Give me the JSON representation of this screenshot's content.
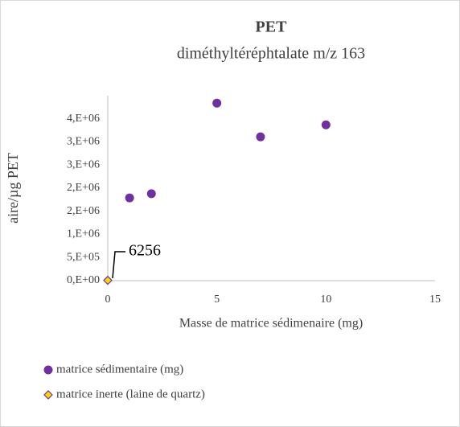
{
  "chart_data": {
    "type": "scatter",
    "title": "PET",
    "subtitle": "diméthyltéréphtalate m/z 163",
    "xlabel": "Masse de matrice sédimenaire (mg)",
    "ylabel": "aire/µg PET",
    "xlim": [
      0,
      15
    ],
    "xticks": [
      0,
      5,
      10,
      15
    ],
    "ylim": [
      0,
      4000000
    ],
    "yticks": [
      {
        "value": 0,
        "label": "0,E+00"
      },
      {
        "value": 500000,
        "label": "5,E+05"
      },
      {
        "value": 1000000,
        "label": "1,E+06"
      },
      {
        "value": 1500000,
        "label": "2,E+06"
      },
      {
        "value": 2000000,
        "label": "2,E+06"
      },
      {
        "value": 2500000,
        "label": "3,E+06"
      },
      {
        "value": 3000000,
        "label": "3,E+06"
      },
      {
        "value": 3500000,
        "label": "4,E+06"
      }
    ],
    "grid": false,
    "legend": "bottom",
    "series": [
      {
        "name": "matrice sédimentaire (mg)",
        "color": "#7030a0",
        "marker": "circle",
        "x": [
          1,
          2,
          5,
          7,
          10
        ],
        "values": [
          1790000,
          1880000,
          3840000,
          3110000,
          3370000
        ]
      },
      {
        "name": "matrice inerte (laine de quartz)",
        "color": "#ffd700",
        "edgecolor": "#7030a0",
        "marker": "diamond",
        "x": [
          0
        ],
        "values": [
          6256
        ]
      }
    ]
  }
}
